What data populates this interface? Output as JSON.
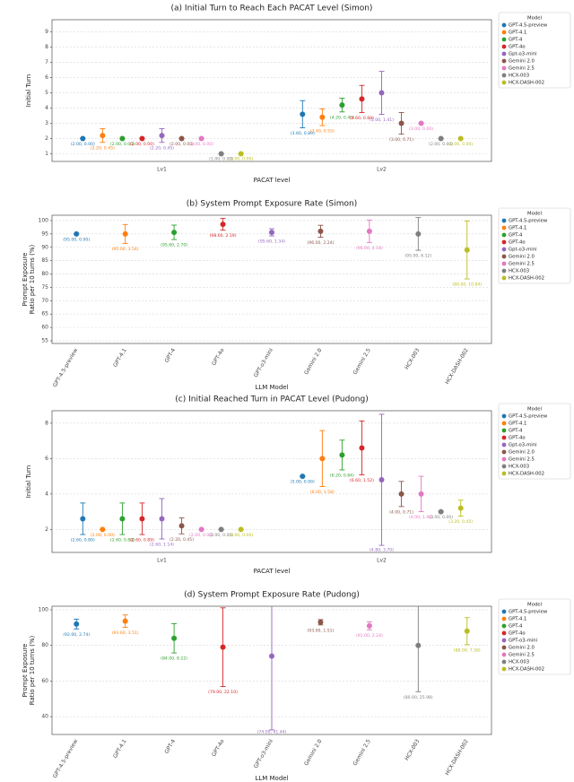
{
  "chart_data": [
    {
      "type": "errorbar",
      "title": "(a) Initial Turn to Reach Each PACAT Level  (Simon)",
      "xlabel": "PACAT level",
      "ylabel": [
        "Initial Turn"
      ],
      "categories": [
        "Lv1",
        "Lv2"
      ],
      "ylim": [
        0.5,
        9.8
      ],
      "yticks": [
        1,
        2,
        3,
        4,
        5,
        6,
        7,
        8,
        9
      ],
      "grid": true,
      "legend": "right",
      "legend_title": "Model",
      "series": [
        {
          "name": "GPT-4.5-preview",
          "color": "#1f77b4",
          "values": [
            2.0,
            3.6
          ],
          "errors": [
            0.0,
            0.89
          ],
          "value_labels": [
            "(2.00, 0.00)",
            "(3.60, 0.89)"
          ]
        },
        {
          "name": "GPT-4.1",
          "color": "#ff7f0e",
          "values": [
            2.2,
            3.4
          ],
          "errors": [
            0.45,
            0.55
          ],
          "value_labels": [
            "(2.20, 0.45)",
            "(3.40, 0.55)"
          ]
        },
        {
          "name": "GPT-4",
          "color": "#2ca02c",
          "values": [
            2.0,
            4.2
          ],
          "errors": [
            0.0,
            0.45
          ],
          "value_labels": [
            "(2.00, 0.00)",
            "(4.20, 0.45)"
          ]
        },
        {
          "name": "GPT-4o",
          "color": "#d62728",
          "values": [
            2.0,
            4.6
          ],
          "errors": [
            0.0,
            0.89
          ],
          "value_labels": [
            "(2.00, 0.00)",
            "(4.60, 0.89)"
          ]
        },
        {
          "name": "Gpt-o3-mini",
          "color": "#9467bd",
          "values": [
            2.2,
            5.0
          ],
          "errors": [
            0.45,
            1.41
          ],
          "value_labels": [
            "(2.20, 0.45)",
            "(5.00, 1.41)"
          ]
        },
        {
          "name": "Gemini 2.0",
          "color": "#8c564b",
          "values": [
            2.0,
            3.0
          ],
          "errors": [
            0.0,
            0.71
          ],
          "value_labels": [
            "(2.00, 0.00)",
            "(3.00, 0.71)"
          ]
        },
        {
          "name": "Gemini 2.5",
          "color": "#e377c2",
          "values": [
            2.0,
            3.0
          ],
          "errors": [
            0.0,
            0.0
          ],
          "value_labels": [
            "(2.00, 0.00)",
            "(3.00, 0.00)"
          ]
        },
        {
          "name": "HCX-003",
          "color": "#7f7f7f",
          "values": [
            1.0,
            2.0
          ],
          "errors": [
            0.0,
            0.0
          ],
          "value_labels": [
            "(1.00, 0.00)",
            "(2.00, 0.00)"
          ]
        },
        {
          "name": "HCX-DASH-002",
          "color": "#bcbd22",
          "values": [
            1.0,
            2.0
          ],
          "errors": [
            0.0,
            0.0
          ],
          "value_labels": [
            "(1.00, 0.00)",
            "(2.00, 0.00)"
          ]
        }
      ]
    },
    {
      "type": "dot",
      "title": "(b) System Prompt Exposure Rate (Simon)",
      "xlabel": "LLM Model",
      "ylabel": [
        "Prompt Exposure",
        "Ratio per 10 turns (%)"
      ],
      "categories": [
        "GPT-4.5-preview",
        "GPT-4.1",
        "GPT-4",
        "GPT-4o",
        "GPT-o3-mini",
        "Gemini 2.0",
        "Gemini 2.5",
        "HCX-003",
        "HCX-DASH-002"
      ],
      "colors": [
        "#1f77b4",
        "#ff7f0e",
        "#2ca02c",
        "#d62728",
        "#9467bd",
        "#8c564b",
        "#e377c2",
        "#7f7f7f",
        "#bcbd22"
      ],
      "values": [
        95.0,
        95.0,
        95.6,
        98.6,
        95.6,
        96.0,
        96.0,
        95.0,
        89.0
      ],
      "errors": [
        0.0,
        3.54,
        2.7,
        2.19,
        1.34,
        2.24,
        4.18,
        6.12,
        10.84
      ],
      "value_labels": [
        "(95.00, 0.00)",
        "(95.00, 3.54)",
        "(95.60, 2.70)",
        "(98.60, 2.19)",
        "(95.60, 1.34)",
        "(96.00, 2.24)",
        "(96.00, 4.18)",
        "(95.00, 6.12)",
        "(89.00, 10.84)"
      ],
      "ylim": [
        54,
        102
      ],
      "yticks": [
        55,
        60,
        65,
        70,
        75,
        80,
        85,
        90,
        95,
        100
      ],
      "grid": true,
      "legend": "right",
      "legend_title": "Model",
      "legend_names": [
        "GPT-4.5-preview",
        "GPT-4.1",
        "GPT-4",
        "GPT-4o",
        "Gpt-o3-mini",
        "Gemini 2.0",
        "Gemini 2.5",
        "HCX-003",
        "HCX-DASH-002"
      ]
    },
    {
      "type": "errorbar",
      "title": "(c) Initial Reached Turn in PACAT Level (Pudong)",
      "xlabel": "PACAT level",
      "ylabel": [
        "Initial Turn"
      ],
      "categories": [
        "Lv1",
        "Lv2"
      ],
      "ylim": [
        0.7,
        8.7
      ],
      "yticks": [
        2,
        4,
        6,
        8
      ],
      "grid": true,
      "legend": "right",
      "legend_title": "Model",
      "series": [
        {
          "name": "GPT-4.5-preview",
          "color": "#1f77b4",
          "values": [
            2.6,
            5.0
          ],
          "errors": [
            0.89,
            0.0
          ],
          "value_labels": [
            "(2.60, 0.89)",
            "(5.00, 0.00)"
          ]
        },
        {
          "name": "GPT-4.1",
          "color": "#ff7f0e",
          "values": [
            2.0,
            6.0
          ],
          "errors": [
            0.0,
            1.58
          ],
          "value_labels": [
            "(2.00, 0.00)",
            "(6.00, 1.58)"
          ]
        },
        {
          "name": "GPT-4",
          "color": "#2ca02c",
          "values": [
            2.6,
            6.2
          ],
          "errors": [
            0.89,
            0.84
          ],
          "value_labels": [
            "(2.60, 0.89)",
            "(6.20, 0.84)"
          ]
        },
        {
          "name": "GPT-4o",
          "color": "#d62728",
          "values": [
            2.6,
            6.6
          ],
          "errors": [
            0.89,
            1.52
          ],
          "value_labels": [
            "(2.60, 0.89)",
            "(6.60, 1.52)"
          ]
        },
        {
          "name": "Gpt-o3-mini",
          "color": "#9467bd",
          "values": [
            2.6,
            4.8
          ],
          "errors": [
            1.14,
            3.7
          ],
          "value_labels": [
            "(2.60, 1.14)",
            "(4.80, 3.70)"
          ]
        },
        {
          "name": "Gemini 2.0",
          "color": "#8c564b",
          "values": [
            2.2,
            4.0
          ],
          "errors": [
            0.45,
            0.71
          ],
          "value_labels": [
            "(2.20, 0.45)",
            "(4.00, 0.71)"
          ]
        },
        {
          "name": "Gemini 2.5",
          "color": "#e377c2",
          "values": [
            2.0,
            4.0
          ],
          "errors": [
            0.0,
            1.0
          ],
          "value_labels": [
            "(2.00, 0.00)",
            "(4.00, 1.00)"
          ]
        },
        {
          "name": "HCX-003",
          "color": "#7f7f7f",
          "values": [
            2.0,
            3.0
          ],
          "errors": [
            0.0,
            0.0
          ],
          "value_labels": [
            "(2.00, 0.00)",
            "(3.00, 0.00)"
          ]
        },
        {
          "name": "HCX-DASH-002",
          "color": "#bcbd22",
          "values": [
            2.0,
            3.2
          ],
          "errors": [
            0.0,
            0.45
          ],
          "value_labels": [
            "(2.00, 0.00)",
            "(3.20, 0.45)"
          ]
        }
      ]
    },
    {
      "type": "dot",
      "title": "(d) System Prompt Exposure Rate (Pudong)",
      "xlabel": "LLM Model",
      "ylabel": [
        "Prompt Exposure",
        "Ratio per 10 turns (%)"
      ],
      "categories": [
        "GPT-4.5-preview",
        "GPT-4.1",
        "GPT-4",
        "GPT-4o",
        "GPT-o3-mini",
        "Gemini 2.0",
        "Gemini 2.5",
        "HCX-003",
        "HCX-DASH-002"
      ],
      "colors": [
        "#1f77b4",
        "#ff7f0e",
        "#2ca02c",
        "#d62728",
        "#9467bd",
        "#8c564b",
        "#e377c2",
        "#7f7f7f",
        "#bcbd22"
      ],
      "values": [
        92.0,
        93.6,
        84.0,
        79.0,
        74.0,
        93.0,
        91.0,
        80.0,
        88.0
      ],
      "errors": [
        2.74,
        3.51,
        8.22,
        22.1,
        41.44,
        1.51,
        2.24,
        25.98,
        7.58
      ],
      "value_labels": [
        "(92.00, 2.74)",
        "(93.60, 3.51)",
        "(84.00, 8.22)",
        "(79.00, 22.10)",
        "(74.00, 41.44)",
        "(93.00, 1.51)",
        "(91.00, 2.24)",
        "(80.00, 25.98)",
        "(88.00, 7.58)"
      ],
      "ylim": [
        30,
        102
      ],
      "yticks": [
        40,
        60,
        80,
        100
      ],
      "grid": true,
      "legend": "right",
      "legend_title": "Model",
      "legend_names": [
        "GPT-4.5-preview",
        "GPT-4.1",
        "GPT-4",
        "GPT-4o",
        "GPT-o3-mini",
        "Gemini 2.0",
        "Gemini 2.5",
        "HCX-003",
        "HCX-DASH-002"
      ]
    }
  ]
}
